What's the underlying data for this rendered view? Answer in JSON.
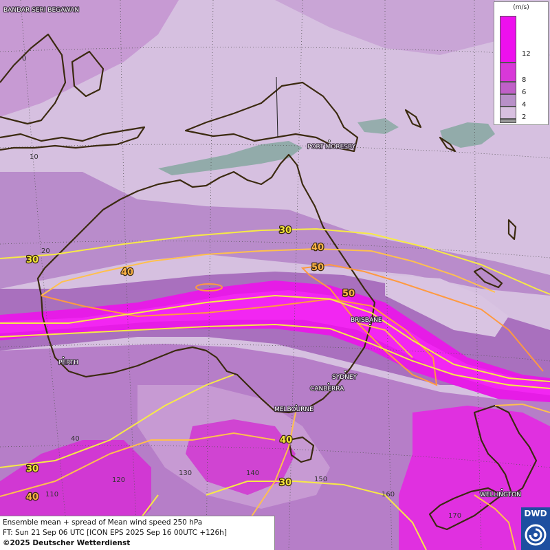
{
  "map": {
    "legend": {
      "unit": "(m/s)",
      "ticks": [
        "12",
        "8",
        "6",
        "4",
        "2"
      ],
      "colors": [
        "#ee10ee",
        "#d838d8",
        "#c060c8",
        "#b890c8",
        "#d8c0e0",
        "#999999"
      ]
    },
    "cities": {
      "bandar": "BANDAR SERI BEGAWAN",
      "port_moresby": "PORT MORESBY",
      "brisbane": "BRISBANE",
      "perth": "PERTH",
      "sydney": "SYDNEY",
      "canberra": "CANBERRA",
      "melbourne": "MELBOURNE",
      "wellington": "WELLINGTON"
    },
    "grid_labels": {
      "lat0": "0",
      "lat10": "10",
      "lat20": "20",
      "lat40": "40",
      "lon110": "110",
      "lon120": "120",
      "lon130": "130",
      "lon140": "140",
      "lon150": "150",
      "lon160": "160",
      "lon170": "170"
    },
    "contour_labels": {
      "c30_w": "30",
      "c30_top": "30",
      "c40_w": "40",
      "c40_e": "40",
      "c50_e": "50",
      "c50_brs": "50",
      "c40_tas": "40",
      "c30_sw": "30",
      "c40_sw": "40",
      "c30_s": "30"
    }
  },
  "footer": {
    "line1": "Ensemble mean + spread of Mean wind speed 250 hPa",
    "line2": "FT: Sun 21 Sep 06 UTC [ICON EPS 2025 Sep 16 00UTC +126h]",
    "copyright": "©2025 Deutscher Wetterdienst"
  },
  "logo": {
    "text": "DWD"
  }
}
